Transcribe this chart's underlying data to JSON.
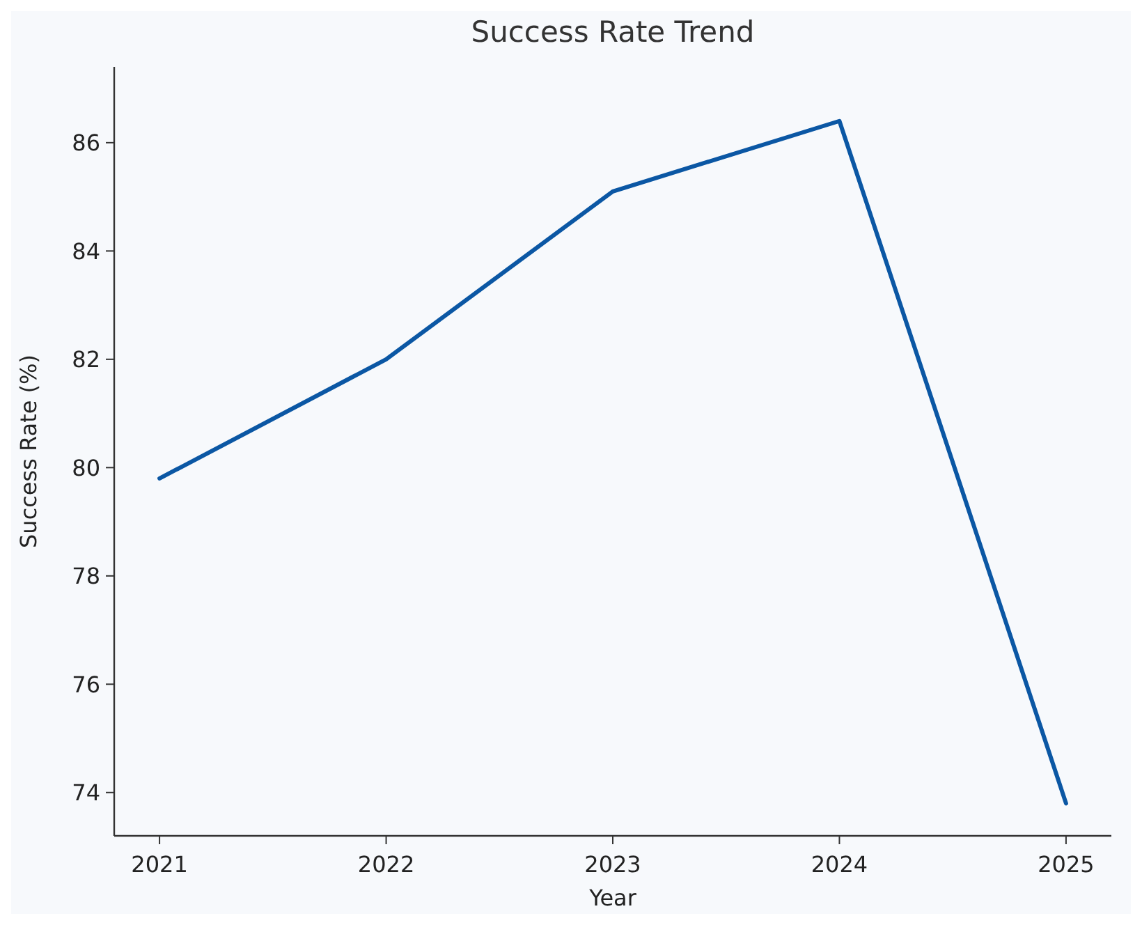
{
  "chart_data": {
    "type": "line",
    "title": "Success Rate Trend",
    "xlabel": "Year",
    "ylabel": "Success Rate (%)",
    "x": [
      2021,
      2022,
      2023,
      2024,
      2025
    ],
    "series": [
      {
        "color": "#0b57a4",
        "values": [
          79.8,
          82.0,
          85.1,
          86.4,
          73.8
        ]
      }
    ],
    "xlim": [
      2020.8,
      2025.2
    ],
    "xticks": [
      2021,
      2022,
      2023,
      2024,
      2025
    ],
    "ylim": [
      73.2,
      87.4
    ],
    "yticks": [
      74,
      76,
      78,
      80,
      82,
      84,
      86
    ],
    "line_style": "solid"
  }
}
